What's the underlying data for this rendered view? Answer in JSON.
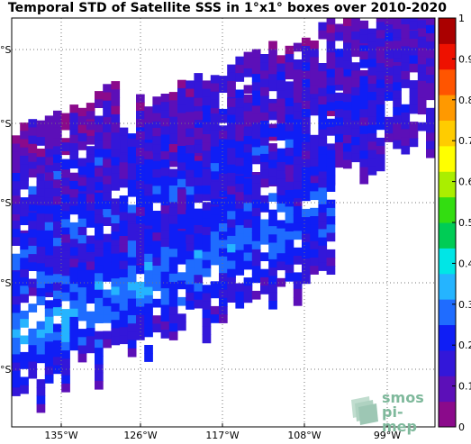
{
  "chart_data": {
    "type": "heatmap",
    "title": "Temporal STD of Satellite SSS in 1°x1° boxes over 2010-2020",
    "xlabel": "",
    "ylabel": "",
    "x_ticks": [
      "135°W",
      "126°W",
      "117°W",
      "108°W",
      "99°W"
    ],
    "y_ticks": [
      "°S",
      "°S",
      "°S",
      "°S",
      "°S"
    ],
    "colorbar": {
      "ticks": [
        "0",
        "0.1",
        "0.2",
        "0.3",
        "0.4",
        "0.5",
        "0.6",
        "0.7",
        "0.8",
        "0.9",
        "1"
      ],
      "range": [
        0,
        1
      ],
      "colors": [
        "#8b0a8b",
        "#5c0fb8",
        "#3317d9",
        "#0f1ef5",
        "#1f6cff",
        "#25b4ff",
        "#00e6e6",
        "#00cc55",
        "#33dd11",
        "#aaee00",
        "#ffff00",
        "#ffcc00",
        "#ff9900",
        "#ff5500",
        "#ee1100",
        "#aa0000"
      ]
    },
    "grid": true,
    "bands": [
      {
        "x_start": 0.0,
        "x_end": 0.25,
        "lat_center": 0.08,
        "width": 0.06,
        "values": [
          0.08,
          0.12,
          0.1
        ]
      },
      {
        "x_start": 0.0,
        "x_end": 1.0,
        "lat_center": 0.18,
        "width": 0.09,
        "values": [
          0.1,
          0.18,
          0.22
        ]
      },
      {
        "x_start": 0.0,
        "x_end": 1.0,
        "lat_center": 0.32,
        "width": 0.14,
        "values": [
          0.12,
          0.2,
          0.25
        ]
      },
      {
        "x_start": 0.0,
        "x_end": 0.75,
        "lat_center": 0.52,
        "width": 0.16,
        "values": [
          0.15,
          0.28,
          0.32
        ]
      }
    ]
  },
  "logo": {
    "line1": "smos",
    "line2": "pi-mep"
  }
}
